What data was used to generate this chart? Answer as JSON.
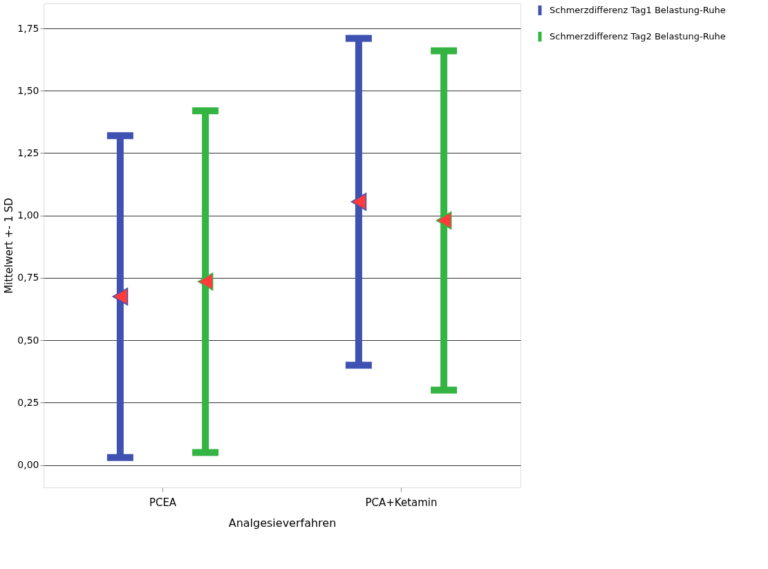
{
  "chart_data": {
    "type": "scatter",
    "xlabel": "Analgesieverfahren",
    "ylabel": "Mittelwert +- 1 SD",
    "categories": [
      "PCEA",
      "PCA+Ketamin"
    ],
    "series": [
      {
        "name": "Schmerzdifferenz Tag1 Belastung-Ruhe",
        "color": "#3f51b1",
        "colors": [
          "#ff3b3b",
          "#ff3b3b"
        ],
        "values": [
          0.675,
          1.055
        ],
        "errors": [
          0.645,
          0.655
        ]
      },
      {
        "name": "Schmerzdifferenz Tag2 Belastung-Ruhe",
        "color": "#33b443",
        "colors": [
          "#ff3b3b",
          "#ff3b3b"
        ],
        "values": [
          0.735,
          0.98
        ],
        "errors": [
          0.685,
          0.68
        ]
      }
    ],
    "ylim": [
      -0.09,
      1.85
    ],
    "yticks": [
      {
        "value": 0,
        "label": "0,00"
      },
      {
        "value": 0.25,
        "label": "0,25"
      },
      {
        "value": 0.5,
        "label": "0,50"
      },
      {
        "value": 0.75,
        "label": "0,75"
      },
      {
        "value": 1,
        "label": "1,00"
      },
      {
        "value": 1.25,
        "label": "1,25"
      },
      {
        "value": 1.5,
        "label": "1,50"
      },
      {
        "value": 1.75,
        "label": "1,75"
      }
    ],
    "grid": "y",
    "legend": "top right",
    "marker": "triangle"
  }
}
